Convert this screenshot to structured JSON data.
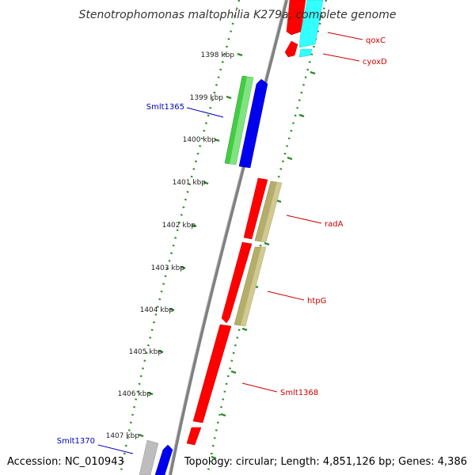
{
  "header": {
    "title": "Stenotrophomonas maltophilia K279a, complete genome"
  },
  "footer": {
    "accession": "Accession: NC_010943",
    "topology": "Topology: circular; Length: 4,851,126 bp; Genes: 4,386"
  },
  "colors": {
    "backbone": "#808080",
    "tick_dots": "#2e8b2e",
    "label_red": "#cc0000",
    "label_blue": "#0000bb",
    "gene_red": "#ff0000",
    "gene_cyan": "#33ffff",
    "gene_green": "#44cc44",
    "gene_blue": "#0000ee",
    "gene_olive": "#b5ad6b",
    "gene_gray": "#bdbdbd"
  },
  "ticks": [
    {
      "label": "1398 kbp"
    },
    {
      "label": "1399 kbp"
    },
    {
      "label": "1400 kbp"
    },
    {
      "label": "1401 kbp"
    },
    {
      "label": "1402 kbp"
    },
    {
      "label": "1403 kbp"
    },
    {
      "label": "1404 kbp"
    },
    {
      "label": "1405 kbp"
    },
    {
      "label": "1406 kbp"
    },
    {
      "label": "1407 kbp"
    }
  ],
  "gene_labels": [
    {
      "name": "qoxC",
      "color": "red"
    },
    {
      "name": "cyoxD",
      "color": "red"
    },
    {
      "name": "Smlt1365",
      "color": "blue"
    },
    {
      "name": "radA",
      "color": "red"
    },
    {
      "name": "htpG",
      "color": "red"
    },
    {
      "name": "Smlt1368",
      "color": "red"
    },
    {
      "name": "Smlt1370",
      "color": "blue"
    }
  ]
}
